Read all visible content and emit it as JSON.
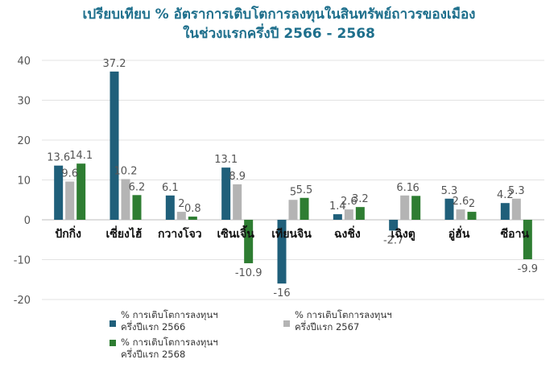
{
  "chart_data": {
    "type": "bar",
    "title": [
      "เปรียบเทียบ % อัตราการเติบโตการลงทุนในสินทรัพย์ถาวรของเมือง",
      "ในช่วงแรกครึ่งปี 2566 - 2568"
    ],
    "categories": [
      "ปักกิ่ง",
      "เซี่ยงไฮ้",
      "กวางโจว",
      "เซินเจิ้น",
      "เทียนจิน",
      "ฉงชิ่ง",
      "เฉิงตู",
      "อู่ฮั่น",
      "ซีอาน"
    ],
    "series": [
      {
        "name": "% การเติบโตการลงทุนฯ ครึ่งปีแรก 2566",
        "color": "#1f5f7a",
        "values": [
          13.6,
          37.2,
          6.1,
          13.1,
          -16,
          1.4,
          -2.7,
          5.3,
          4.2
        ],
        "labels": [
          "13.6",
          "37.2",
          "6.1",
          "13.1",
          "-16",
          "1.4",
          "-2.7",
          "5.3",
          "4.2"
        ]
      },
      {
        "name": "% การเติบโตการลงทุนฯ ครึ่งปีแรก 2567",
        "color": "#b4b4b4",
        "values": [
          9.6,
          10.2,
          2,
          8.9,
          5,
          2.6,
          6.1,
          2.6,
          5.3
        ],
        "labels": [
          "9.6",
          "10.2",
          "2",
          "8.9",
          "5",
          "2.6",
          "6.1",
          "2.6",
          "5.3"
        ]
      },
      {
        "name": "% การเติบโตการลงทุนฯ ครึ่งปีแรก 2568",
        "color": "#2e7d32",
        "values": [
          14.1,
          6.2,
          0.8,
          -10.9,
          5.5,
          3.2,
          6,
          2,
          -9.9
        ],
        "labels": [
          "14.1",
          "6.2",
          "0.8",
          "-10.9",
          "5.5",
          "3.2",
          "6",
          "2",
          "-9.9"
        ]
      }
    ],
    "yticks": [
      40,
      30,
      20,
      10,
      0,
      -10,
      -20
    ],
    "ylim": [
      -20,
      40
    ],
    "xlabel": "",
    "ylabel": "",
    "grid": true,
    "legend_placement": "bottom"
  },
  "legend": {
    "s1_line1": "% การเติบโตการลงทุนฯ",
    "s1_line2": "ครึ่งปีแรก 2566",
    "s2_line1": "% การเติบโตการลงทุนฯ",
    "s2_line2": "ครึ่งปีแรก 2567",
    "s3_line1": "% การเติบโตการลงทุนฯ",
    "s3_line2": "ครึ่งปีแรก 2568"
  }
}
